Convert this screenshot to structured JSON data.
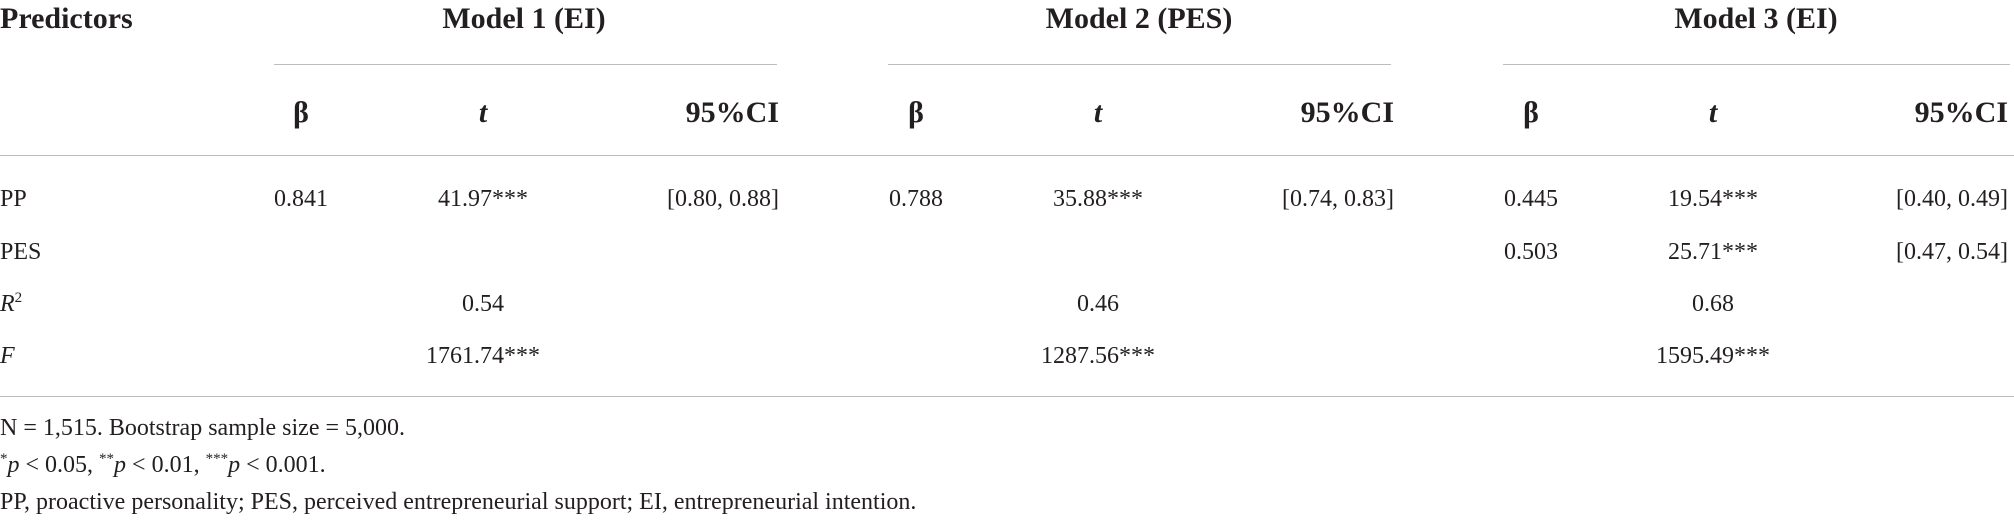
{
  "table": {
    "header": {
      "predictors": "Predictors",
      "models": [
        {
          "title": "Model 1 (EI)",
          "columns": [
            "β",
            "t",
            "95%CI"
          ]
        },
        {
          "title": "Model 2 (PES)",
          "columns": [
            "β",
            "t",
            "95%CI"
          ]
        },
        {
          "title": "Model 3 (EI)",
          "columns": [
            "β",
            "t",
            "95%CI"
          ]
        }
      ]
    },
    "rows": [
      {
        "label": "PP",
        "values": [
          [
            "0.841",
            "41.97***",
            "[0.80, 0.88]"
          ],
          [
            "0.788",
            "35.88***",
            "[0.74, 0.83]"
          ],
          [
            "0.445",
            "19.54***",
            "[0.40, 0.49]"
          ]
        ]
      },
      {
        "label": "PES",
        "values": [
          null,
          null,
          [
            "0.503",
            "25.71***",
            "[0.47, 0.54]"
          ]
        ]
      },
      {
        "label": "R",
        "label_sup": "2",
        "italic": true,
        "values": [
          "0.54",
          "0.46",
          "0.68"
        ]
      },
      {
        "label": "F",
        "italic": true,
        "values": [
          "1761.74***",
          "1287.56***",
          "1595.49***"
        ]
      }
    ],
    "notes": [
      [
        {
          "text": "N = 1,515. Bootstrap sample size = 5,000."
        }
      ],
      [
        {
          "text": "*",
          "style": "sup"
        },
        {
          "text": "p",
          "style": "i"
        },
        {
          "text": " < 0.05, "
        },
        {
          "text": "**",
          "style": "sup"
        },
        {
          "text": "p",
          "style": "i"
        },
        {
          "text": " < 0.01, "
        },
        {
          "text": "***",
          "style": "sup"
        },
        {
          "text": "p",
          "style": "i"
        },
        {
          "text": " < 0.001."
        }
      ],
      [
        {
          "text": "PP, proactive personality; PES, perceived entrepreneurial support; EI, entrepreneurial intention."
        }
      ]
    ]
  }
}
